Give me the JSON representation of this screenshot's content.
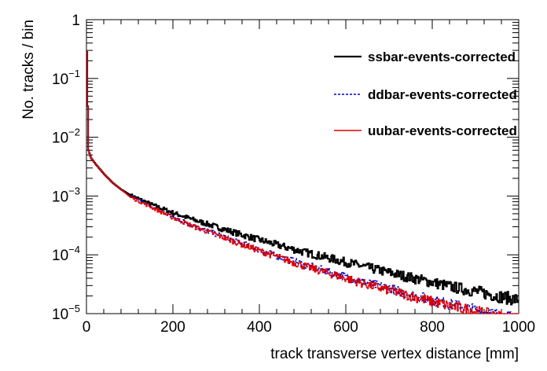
{
  "chart_data": {
    "type": "line",
    "xlabel": "track transverse vertex distance [mm]",
    "ylabel": "No. tracks / bin",
    "xlim": [
      0,
      1000
    ],
    "ylim": [
      1e-05,
      1
    ],
    "yscale": "log",
    "grid": false,
    "legend_position": "top-right",
    "x_ticks": [
      {
        "value": 0,
        "label": "0"
      },
      {
        "value": 200,
        "label": "200"
      },
      {
        "value": 400,
        "label": "400"
      },
      {
        "value": 600,
        "label": "600"
      },
      {
        "value": 800,
        "label": "800"
      },
      {
        "value": 1000,
        "label": "1000"
      }
    ],
    "y_ticks": [
      {
        "value": 1,
        "base": "1",
        "exp": ""
      },
      {
        "value": 0.1,
        "base": "10",
        "exp": "−1"
      },
      {
        "value": 0.01,
        "base": "10",
        "exp": "−2"
      },
      {
        "value": 0.001,
        "base": "10",
        "exp": "−3"
      },
      {
        "value": 0.0001,
        "base": "10",
        "exp": "−4"
      },
      {
        "value": 1e-05,
        "base": "10",
        "exp": "−5"
      }
    ],
    "x": [
      0,
      2,
      5,
      10,
      20,
      40,
      60,
      80,
      100,
      150,
      200,
      250,
      300,
      350,
      400,
      450,
      500,
      550,
      600,
      650,
      700,
      750,
      800,
      850,
      900,
      950,
      1000
    ],
    "series": [
      {
        "name": "ssbar-events-corrected",
        "color": "#000000",
        "dash": "",
        "values": [
          1.0,
          0.08,
          0.006,
          0.0045,
          0.0036,
          0.0024,
          0.0017,
          0.0013,
          0.00105,
          0.00072,
          0.00052,
          0.00039,
          0.0003,
          0.00023,
          0.00018,
          0.000142,
          0.000113,
          9.2e-05,
          7.5e-05,
          6.1e-05,
          5e-05,
          4.1e-05,
          3.4e-05,
          2.8e-05,
          2.4e-05,
          2e-05,
          1.7e-05
        ]
      },
      {
        "name": "ddbar-events-corrected",
        "color": "#0000cc",
        "dash": "3,2",
        "values": [
          1.0,
          0.08,
          0.006,
          0.0045,
          0.0036,
          0.0024,
          0.0017,
          0.0013,
          0.001,
          0.00066,
          0.00044,
          0.00031,
          0.000225,
          0.000165,
          0.000122,
          9.1e-05,
          6.9e-05,
          5.4e-05,
          4.2e-05,
          3.3e-05,
          2.7e-05,
          2.1e-05,
          1.7e-05,
          1.4e-05,
          1.15e-05,
          9.5e-06,
          8e-06
        ]
      },
      {
        "name": "uubar-events-corrected",
        "color": "#dd0000",
        "dash": "",
        "values": [
          1.0,
          0.08,
          0.006,
          0.0045,
          0.0036,
          0.0024,
          0.0017,
          0.0013,
          0.00098,
          0.00065,
          0.00043,
          0.0003,
          0.00022,
          0.00016,
          0.000118,
          8.8e-05,
          6.6e-05,
          5.1e-05,
          4e-05,
          3.1e-05,
          2.5e-05,
          2e-05,
          1.6e-05,
          1.3e-05,
          1.1e-05,
          9e-06,
          7.5e-06
        ]
      }
    ]
  }
}
